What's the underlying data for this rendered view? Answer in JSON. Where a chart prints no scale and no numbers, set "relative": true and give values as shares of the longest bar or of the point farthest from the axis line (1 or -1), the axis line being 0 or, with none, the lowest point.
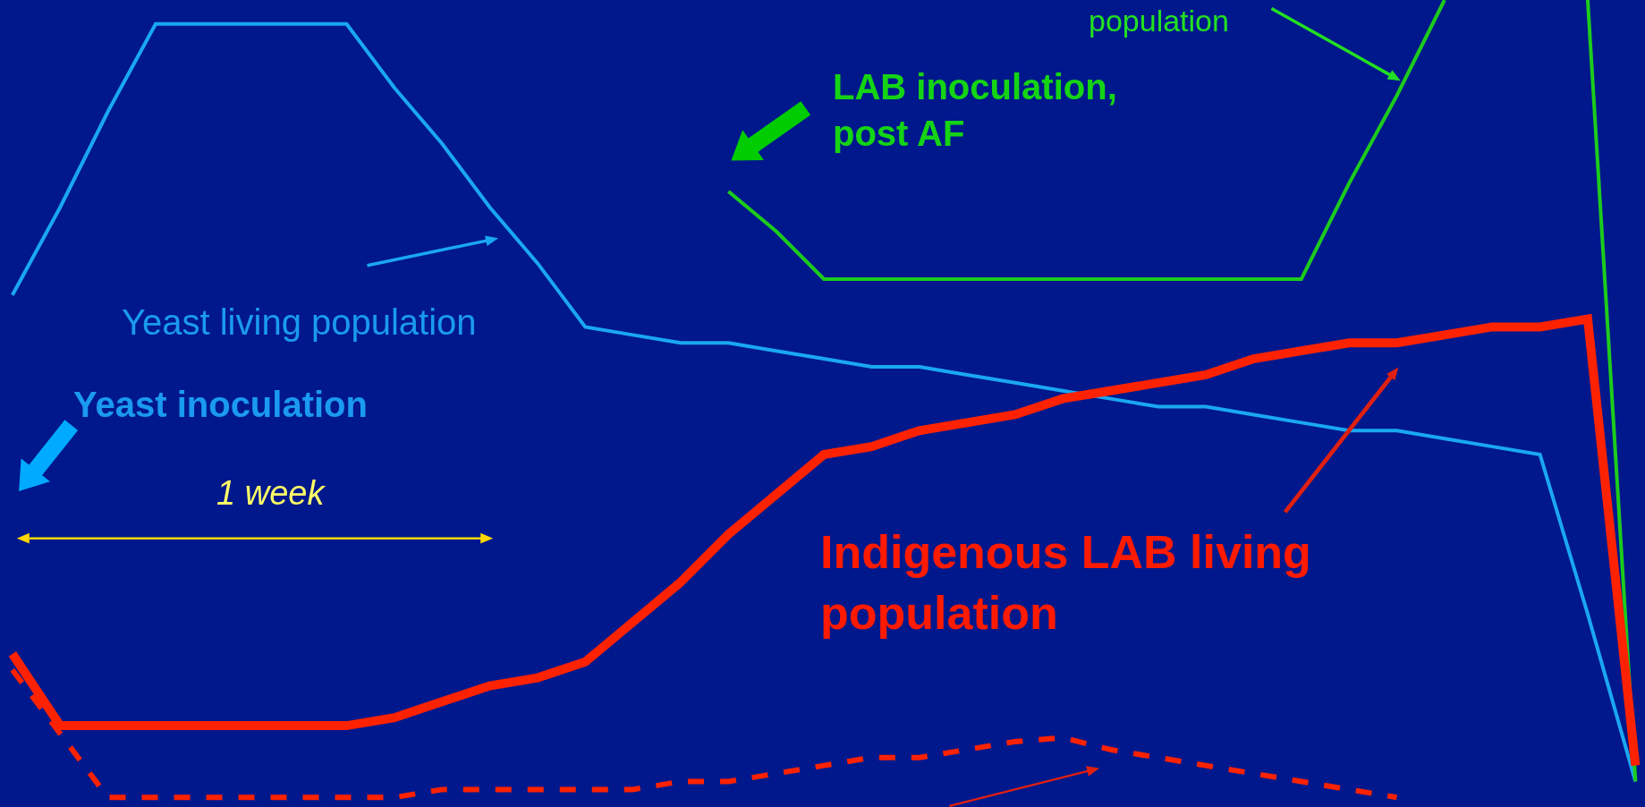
{
  "chart_data": {
    "type": "line",
    "relative": true,
    "grid": false,
    "marker": "none",
    "categories": [
      null,
      null,
      null,
      null,
      null,
      null,
      null,
      null,
      null,
      null,
      null,
      null,
      null,
      null,
      null,
      null,
      null,
      null,
      null,
      null,
      null,
      null,
      null,
      null,
      null,
      null,
      null,
      null,
      null,
      null,
      null,
      null,
      null,
      null,
      null
    ],
    "series": [
      {
        "color": "#1aa8f0",
        "values": [
          0.63,
          0.74,
          0.86,
          0.97,
          0.97,
          0.97,
          0.97,
          0.97,
          0.89,
          0.82,
          0.74,
          0.67,
          0.59,
          0.58,
          0.57,
          0.57,
          0.56,
          0.55,
          0.54,
          0.54,
          0.53,
          0.52,
          0.51,
          0.5,
          0.49,
          0.49,
          0.48,
          0.47,
          0.46,
          0.46,
          0.45,
          0.44,
          0.43,
          0.23,
          0.02
        ]
      },
      {
        "color": "#1ccc1c",
        "values": [
          null,
          null,
          null,
          null,
          null,
          null,
          null,
          null,
          null,
          null,
          null,
          null,
          null,
          null,
          null,
          0.76,
          0.71,
          0.65,
          0.65,
          0.65,
          0.65,
          0.65,
          0.65,
          0.65,
          0.65,
          0.65,
          0.65,
          0.65,
          0.77,
          0.88,
          1.0,
          null,
          null,
          null,
          null
        ]
      },
      {
        "color": "#1ccc1c",
        "values": [
          null,
          null,
          null,
          null,
          null,
          null,
          null,
          null,
          null,
          null,
          null,
          null,
          null,
          null,
          null,
          null,
          null,
          null,
          null,
          null,
          null,
          null,
          null,
          null,
          null,
          null,
          null,
          null,
          null,
          null,
          null,
          null,
          null,
          1.0,
          0.02
        ]
      },
      {
        "color": "#ff2200",
        "values": [
          0.18,
          0.09,
          0.09,
          0.09,
          0.09,
          0.09,
          0.09,
          0.09,
          0.1,
          0.12,
          0.14,
          0.15,
          0.17,
          0.22,
          0.27,
          0.33,
          0.38,
          0.43,
          0.44,
          0.46,
          0.47,
          0.48,
          0.5,
          0.51,
          0.52,
          0.53,
          0.55,
          0.56,
          0.57,
          0.57,
          0.58,
          0.59,
          0.59,
          0.6,
          0.04
        ]
      },
      {
        "color": "#ff2200",
        "line_style": "dashed",
        "values": [
          0.16,
          0.08,
          0,
          0,
          0,
          0,
          0,
          0,
          0,
          0.01,
          0.01,
          0.01,
          0.01,
          0.01,
          0.02,
          0.02,
          0.03,
          0.04,
          0.05,
          0.05,
          0.06,
          0.07,
          0.075,
          0.06,
          0.05,
          0.04,
          0.03,
          0.02,
          0.01,
          0,
          null,
          null,
          null,
          null,
          null
        ]
      }
    ],
    "annotations": [
      "population",
      "LAB inoculation,\npost AF",
      "Yeast living population",
      "Yeast inoculation",
      "1 week",
      "Indigenous LAB living\npopulation"
    ]
  }
}
